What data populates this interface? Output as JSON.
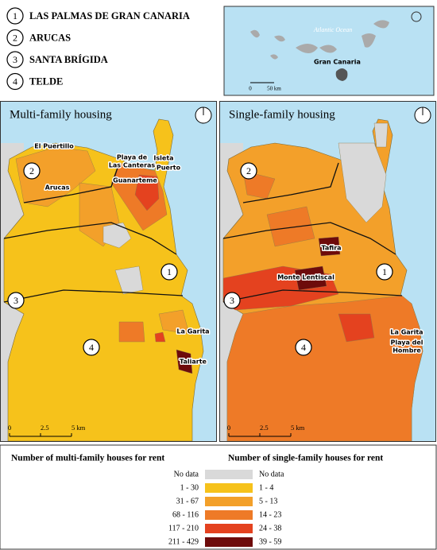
{
  "municipalities": [
    {
      "number": "1",
      "name": "LAS PALMAS DE GRAN CANARIA"
    },
    {
      "number": "2",
      "name": "ARUCAS"
    },
    {
      "number": "3",
      "name": "SANTA BRÍGIDA"
    },
    {
      "number": "4",
      "name": "TELDE"
    }
  ],
  "inset": {
    "ocean": "Atlantic Ocean",
    "island": "Gran Canaria",
    "scale": [
      "0",
      "50 km"
    ]
  },
  "panels": [
    {
      "title": "Multi-family housing",
      "legend_key": "multi",
      "places": [
        {
          "lines": [
            "El Puertillo"
          ]
        },
        {
          "lines": [
            "Arucas"
          ]
        },
        {
          "lines": [
            "Playa de",
            "Las Canteras"
          ]
        },
        {
          "lines": [
            "Isleta"
          ]
        },
        {
          "lines": [
            "Puerto"
          ]
        },
        {
          "lines": [
            "Guanarteme"
          ]
        },
        {
          "lines": [
            "La Garita"
          ]
        },
        {
          "lines": [
            "Taliarte"
          ]
        }
      ],
      "scale": [
        "0",
        "2.5",
        "5 km"
      ]
    },
    {
      "title": "Single-family housing",
      "legend_key": "single",
      "places": [
        {
          "lines": [
            "Tafira"
          ]
        },
        {
          "lines": [
            "Monte Lentiscal"
          ]
        },
        {
          "lines": [
            "La Garita"
          ]
        },
        {
          "lines": [
            "Playa del",
            "Hombre"
          ]
        }
      ],
      "scale": [
        "0",
        "2.5",
        "5 km"
      ]
    }
  ],
  "legend": {
    "multi_title": "Number of multi-family houses for rent",
    "single_title": "Number of single-family houses for rent",
    "classes": [
      {
        "color": "#d9d9d9",
        "multi": "No data",
        "single": "No data"
      },
      {
        "color": "#f6c21b",
        "multi": "1 - 30",
        "single": "1 - 4"
      },
      {
        "color": "#f3a02a",
        "multi": "31 - 67",
        "single": "5 - 13"
      },
      {
        "color": "#ee7a27",
        "multi": "68 - 116",
        "single": "14 - 23"
      },
      {
        "color": "#e4421f",
        "multi": "117 - 210",
        "single": "24 - 38"
      },
      {
        "color": "#6e0b0b",
        "multi": "211 - 429",
        "single": "39 - 59"
      }
    ]
  }
}
